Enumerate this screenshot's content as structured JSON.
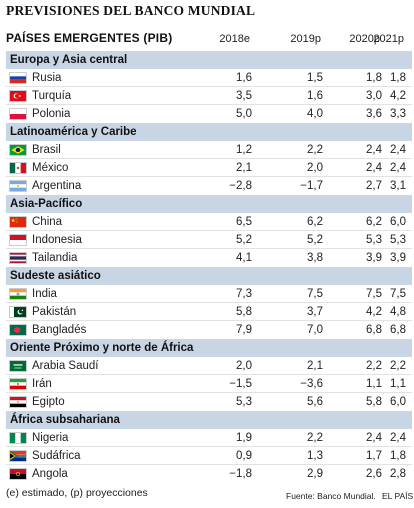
{
  "title": "PREVISIONES DEL BANCO MUNDIAL",
  "subtitle": "PAÍSES EMERGENTES (PIB)",
  "columns": [
    "2018e",
    "2019p",
    "2020p",
    "2021p"
  ],
  "sections": [
    {
      "name": "Europa y Asia central",
      "rows": [
        {
          "country": "Rusia",
          "flag": "russia-flag-icon",
          "values": [
            "1,6",
            "1,5",
            "1,8",
            "1,8"
          ]
        },
        {
          "country": "Turquía",
          "flag": "turkey-flag-icon",
          "values": [
            "3,5",
            "1,6",
            "3,0",
            "4,2"
          ]
        },
        {
          "country": "Polonia",
          "flag": "poland-flag-icon",
          "values": [
            "5,0",
            "4,0",
            "3,6",
            "3,3"
          ]
        }
      ]
    },
    {
      "name": "Latinoamérica y Caribe",
      "rows": [
        {
          "country": "Brasil",
          "flag": "brazil-flag-icon",
          "values": [
            "1,2",
            "2,2",
            "2,4",
            "2,4"
          ]
        },
        {
          "country": "México",
          "flag": "mexico-flag-icon",
          "values": [
            "2,1",
            "2,0",
            "2,4",
            "2,4"
          ]
        },
        {
          "country": "Argentina",
          "flag": "argentina-flag-icon",
          "values": [
            "−2,8",
            "−1,7",
            "2,7",
            "3,1"
          ]
        }
      ]
    },
    {
      "name": "Asia-Pacífico",
      "rows": [
        {
          "country": "China",
          "flag": "china-flag-icon",
          "values": [
            "6,5",
            "6,2",
            "6,2",
            "6,0"
          ]
        },
        {
          "country": "Indonesia",
          "flag": "indonesia-flag-icon",
          "values": [
            "5,2",
            "5,2",
            "5,3",
            "5,3"
          ]
        },
        {
          "country": "Tailandia",
          "flag": "thailand-flag-icon",
          "values": [
            "4,1",
            "3,8",
            "3,9",
            "3,9"
          ]
        }
      ]
    },
    {
      "name": "Sudeste asiático",
      "rows": [
        {
          "country": "India",
          "flag": "india-flag-icon",
          "values": [
            "7,3",
            "7,5",
            "7,5",
            "7,5"
          ]
        },
        {
          "country": "Pakistán",
          "flag": "pakistan-flag-icon",
          "values": [
            "5,8",
            "3,7",
            "4,2",
            "4,8"
          ]
        },
        {
          "country": "Bangladés",
          "flag": "bangladesh-flag-icon",
          "values": [
            "7,9",
            "7,0",
            "6,8",
            "6,8"
          ]
        }
      ]
    },
    {
      "name": "Oriente Próximo y norte de África",
      "rows": [
        {
          "country": "Arabia Saudí",
          "flag": "saudi-arabia-flag-icon",
          "values": [
            "2,0",
            "2,1",
            "2,2",
            "2,2"
          ]
        },
        {
          "country": "Irán",
          "flag": "iran-flag-icon",
          "values": [
            "−1,5",
            "−3,6",
            "1,1",
            "1,1"
          ]
        },
        {
          "country": "Egipto",
          "flag": "egypt-flag-icon",
          "values": [
            "5,3",
            "5,6",
            "5,8",
            "6,0"
          ]
        }
      ]
    },
    {
      "name": "África subsahariana",
      "rows": [
        {
          "country": "Nigeria",
          "flag": "nigeria-flag-icon",
          "values": [
            "1,9",
            "2,2",
            "2,4",
            "2,4"
          ]
        },
        {
          "country": "Sudáfrica",
          "flag": "south-africa-flag-icon",
          "values": [
            "0,9",
            "1,3",
            "1,7",
            "1,8"
          ]
        },
        {
          "country": "Angola",
          "flag": "angola-flag-icon",
          "values": [
            "−1,8",
            "2,9",
            "2,6",
            "2,8"
          ]
        }
      ]
    }
  ],
  "footnote": "(e) estimado, (p) proyecciones",
  "source": "Fuente: Banco Mundial.",
  "brand": "EL PAÍS",
  "colors": {
    "section_bg": "#c8d5e4",
    "text": "#222222"
  }
}
